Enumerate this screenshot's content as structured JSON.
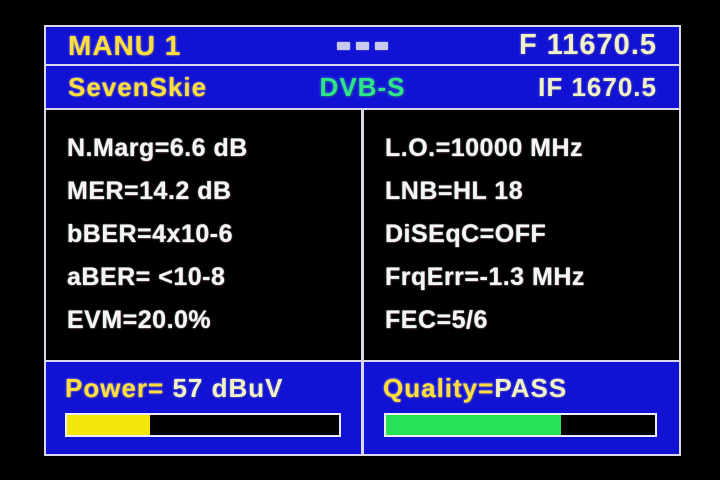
{
  "colors": {
    "panel_blue": "#1212d4",
    "frame_border": "#d8d8e8",
    "accent_yellow": "#ffdf3a",
    "pale_yellow": "#f2f2c8",
    "standard_green": "#2ee587",
    "power_bar_fill": "#f2e60a",
    "quality_bar_fill": "#27e257",
    "measurement_white": "#f5f5f5"
  },
  "header": {
    "preset": "MANU 1",
    "frequency": "F 11670.5",
    "indicator": "battery-segments"
  },
  "subheader": {
    "name": "SevenSkie",
    "standard": "DVB-S",
    "if_frequency": "IF 1670.5"
  },
  "measurements": {
    "left": [
      "N.Marg=6.6 dB",
      "MER=14.2 dB",
      "bBER=4x10-6",
      "aBER= <10-8",
      "EVM=20.0%"
    ],
    "right": [
      "L.O.=10000 MHz",
      "LNB=HL 18",
      "DiSEqC=OFF",
      "FrqErr=-1.3 MHz",
      "FEC=5/6"
    ]
  },
  "power": {
    "label": "Power=",
    "value": " 57 dBuV",
    "percent": 30.5
  },
  "quality": {
    "label": "Quality=",
    "value": "PASS",
    "percent": 65
  }
}
